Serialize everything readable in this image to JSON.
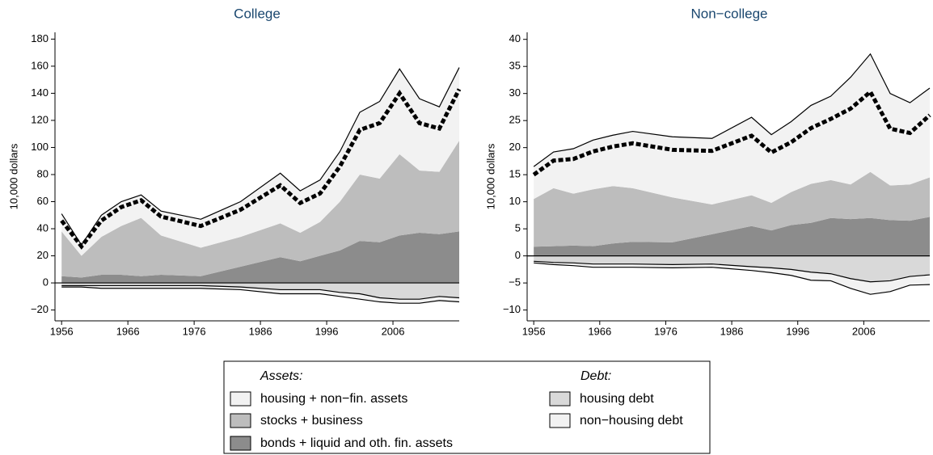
{
  "chart_data": [
    {
      "type": "area",
      "title": "College",
      "ylabel": "10,000 dollars",
      "x": [
        1956,
        1959,
        1962,
        1965,
        1968,
        1971,
        1977,
        1983,
        1989,
        1992,
        1995,
        1998,
        2001,
        2004,
        2007,
        2010,
        2013,
        2016
      ],
      "xlim": [
        1955,
        2016
      ],
      "xticks": [
        1956,
        1966,
        1976,
        1986,
        1996,
        2006
      ],
      "ylim": [
        -28,
        185
      ],
      "yticks": [
        {
          "value": -20,
          "label": "−20"
        },
        0,
        20,
        40,
        60,
        80,
        100,
        120,
        140,
        160,
        180
      ],
      "series": [
        {
          "name": "bonds + liquid and oth. fin. assets",
          "color": "#8c8c8c",
          "outline": false,
          "values": [
            5,
            4,
            6,
            6,
            5,
            6,
            5,
            12,
            19,
            16,
            20,
            24,
            31,
            30,
            35,
            37,
            36,
            38
          ]
        },
        {
          "name": "stocks + business",
          "color": "#bdbdbd",
          "outline": false,
          "values": [
            33,
            16,
            28,
            36,
            43,
            29,
            21,
            22,
            25,
            21,
            25,
            36,
            49,
            47,
            60,
            46,
            46,
            67
          ]
        },
        {
          "name": "housing + non−fin. assets",
          "color": "#f2f2f2",
          "outline": true,
          "values": [
            13,
            8,
            16,
            18,
            17,
            18,
            21,
            26,
            37,
            31,
            31,
            37,
            46,
            57,
            63,
            53,
            48,
            54
          ]
        },
        {
          "name": "housing debt",
          "color": "#d9d9d9",
          "outline": true,
          "values": [
            -2,
            -2,
            -2,
            -2,
            -2,
            -2,
            -2,
            -3,
            -5,
            -5,
            -5,
            -7,
            -8,
            -11,
            -12,
            -12,
            -10,
            -11
          ]
        },
        {
          "name": "non−housing debt",
          "color": "#f2f2f2",
          "outline": true,
          "values": [
            -1,
            -1,
            -2,
            -2,
            -2,
            -2,
            -2,
            -2,
            -3,
            -3,
            -3,
            -3,
            -4,
            -3,
            -3,
            -3,
            -3,
            -3
          ]
        }
      ],
      "net_worth": {
        "color": "#000000",
        "style": "dashed",
        "values": [
          46,
          27,
          46,
          56,
          61,
          49,
          42,
          54,
          72,
          59,
          66,
          86,
          113,
          118,
          140,
          118,
          114,
          143
        ]
      }
    },
    {
      "type": "area",
      "title": "Non−college",
      "ylabel": "10,000 dollars",
      "x": [
        1956,
        1959,
        1962,
        1965,
        1968,
        1971,
        1977,
        1983,
        1989,
        1992,
        1995,
        1998,
        2001,
        2004,
        2007,
        2010,
        2013,
        2016
      ],
      "xlim": [
        1955,
        2016
      ],
      "xticks": [
        1956,
        1966,
        1976,
        1986,
        1996,
        2006
      ],
      "ylim": [
        -12,
        41.3
      ],
      "yticks": [
        {
          "value": -10,
          "label": "−10"
        },
        {
          "value": -5,
          "label": "−5"
        },
        0,
        5,
        10,
        15,
        20,
        25,
        30,
        35,
        40
      ],
      "series": [
        {
          "name": "bonds + liquid and oth. fin. assets",
          "color": "#8c8c8c",
          "outline": false,
          "values": [
            1.7,
            1.8,
            1.9,
            1.8,
            2.3,
            2.6,
            2.5,
            4.0,
            5.5,
            4.7,
            5.7,
            6.1,
            7.0,
            6.8,
            7.0,
            6.6,
            6.5,
            7.2
          ]
        },
        {
          "name": "stocks + business",
          "color": "#bdbdbd",
          "outline": false,
          "values": [
            8.8,
            10.7,
            9.6,
            10.5,
            10.6,
            9.9,
            8.3,
            5.5,
            5.7,
            5.1,
            6.1,
            7.2,
            7.0,
            6.4,
            8.5,
            6.4,
            6.7,
            7.3
          ]
        },
        {
          "name": "housing + non−fin. assets",
          "color": "#f2f2f2",
          "outline": true,
          "values": [
            6.0,
            6.7,
            8.3,
            9.1,
            9.4,
            10.5,
            11.2,
            12.2,
            14.4,
            12.6,
            13.0,
            14.5,
            15.5,
            19.8,
            21.8,
            17.0,
            15.1,
            16.5
          ]
        },
        {
          "name": "housing debt",
          "color": "#d9d9d9",
          "outline": true,
          "values": [
            -1.0,
            -1.2,
            -1.3,
            -1.5,
            -1.5,
            -1.5,
            -1.6,
            -1.5,
            -2.0,
            -2.2,
            -2.5,
            -3.0,
            -3.3,
            -4.2,
            -4.8,
            -4.6,
            -3.8,
            -3.5
          ]
        },
        {
          "name": "non−housing debt",
          "color": "#f2f2f2",
          "outline": true,
          "values": [
            -0.3,
            -0.4,
            -0.5,
            -0.6,
            -0.6,
            -0.6,
            -0.6,
            -0.6,
            -0.7,
            -0.9,
            -1.1,
            -1.5,
            -1.3,
            -1.8,
            -2.3,
            -2.0,
            -1.6,
            -1.8
          ]
        }
      ],
      "net_worth": {
        "color": "#000000",
        "style": "dashed",
        "values": [
          15.0,
          17.6,
          17.9,
          19.3,
          20.2,
          20.8,
          19.6,
          19.4,
          22.2,
          19.1,
          21.0,
          23.6,
          25.3,
          27.2,
          30.3,
          23.5,
          22.7,
          26.0
        ]
      }
    }
  ],
  "legend": {
    "assets_title": "Assets:",
    "debt_title": "Debt:"
  }
}
